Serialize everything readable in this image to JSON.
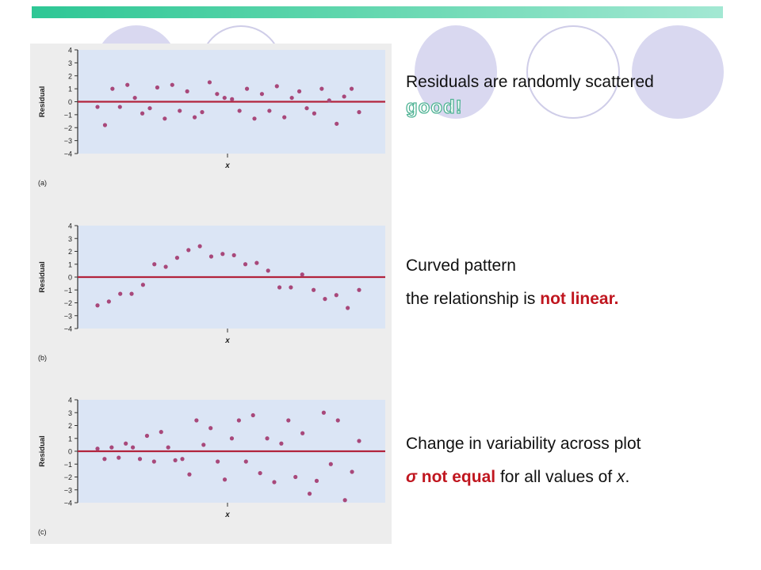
{
  "colors": {
    "plot_bg": "#dbe5f5",
    "zero_line": "#b2243c",
    "point": "#a8487a",
    "accent_red": "#c0161f",
    "good_outline": "#4fb394",
    "circle_fill": "#d9d8f0",
    "circle_outline": "#cfcde8"
  },
  "decor": {
    "arrow_glyph": ""
  },
  "chart_data": [
    {
      "type": "scatter",
      "panel_label": "(a)",
      "xlabel": "x",
      "ylabel": "Residual",
      "ylim": [
        -4,
        4
      ],
      "yticks": [
        "4",
        "3",
        "2",
        "1",
        "0",
        "−1",
        "−2",
        "−3",
        "−4"
      ],
      "zero_line": 0,
      "x": [
        1,
        2,
        3,
        4,
        5,
        6,
        7,
        8,
        9,
        10,
        11,
        12,
        13,
        14,
        15,
        16,
        17,
        18,
        19,
        20,
        21,
        22,
        23,
        24,
        25,
        26,
        27,
        28,
        29,
        30,
        31,
        32,
        33,
        34,
        35,
        36
      ],
      "y": [
        -0.4,
        -1.8,
        1.0,
        -0.4,
        1.3,
        0.3,
        -0.9,
        -0.5,
        1.1,
        -1.3,
        1.3,
        -0.7,
        0.8,
        -1.2,
        -0.8,
        1.5,
        0.6,
        0.3,
        0.2,
        -0.7,
        1.0,
        -1.3,
        0.6,
        -0.7,
        1.2,
        -1.2,
        0.3,
        0.8,
        -0.5,
        -0.9,
        1.0,
        0.1,
        -1.7,
        0.4,
        1.0,
        -0.8
      ]
    },
    {
      "type": "scatter",
      "panel_label": "(b)",
      "xlabel": "x",
      "ylabel": "Residual",
      "ylim": [
        -4,
        4
      ],
      "yticks": [
        "4",
        "3",
        "2",
        "1",
        "0",
        "−1",
        "−2",
        "−3",
        "−4"
      ],
      "zero_line": 0,
      "x": [
        1,
        2,
        3,
        4,
        5,
        6,
        7,
        8,
        9,
        10,
        11,
        12,
        13,
        14,
        15,
        16,
        17,
        18,
        19,
        20,
        21,
        22,
        23,
        24
      ],
      "y": [
        -2.2,
        -1.9,
        -1.3,
        -1.3,
        -0.6,
        1.0,
        0.8,
        1.5,
        2.1,
        2.4,
        1.6,
        1.8,
        1.7,
        1.0,
        1.1,
        0.5,
        -0.8,
        -0.8,
        0.2,
        -1.0,
        -1.7,
        -1.4,
        -2.4,
        -1.0
      ]
    },
    {
      "type": "scatter",
      "panel_label": "(c)",
      "xlabel": "x",
      "ylabel": "Residual",
      "ylim": [
        -4,
        4
      ],
      "yticks": [
        "4",
        "3",
        "2",
        "1",
        "0",
        "−1",
        "−2",
        "−3",
        "−4"
      ],
      "zero_line": 0,
      "x": [
        1,
        2,
        3,
        4,
        5,
        6,
        7,
        8,
        9,
        10,
        11,
        12,
        13,
        14,
        15,
        16,
        17,
        18,
        19,
        20,
        21,
        22,
        23,
        24,
        25,
        26,
        27,
        28,
        29,
        30,
        31,
        32,
        33,
        34,
        35,
        36,
        37,
        38
      ],
      "y": [
        0.2,
        -0.6,
        0.3,
        -0.5,
        0.6,
        0.3,
        -0.6,
        1.2,
        -0.8,
        1.5,
        0.3,
        -0.7,
        -0.6,
        -1.8,
        2.4,
        0.5,
        1.8,
        -0.8,
        -2.2,
        1.0,
        2.4,
        -0.8,
        2.8,
        -1.7,
        1.0,
        -2.4,
        0.6,
        2.4,
        -2.0,
        1.4,
        -3.3,
        -2.3,
        3.0,
        -1.0,
        2.4,
        -3.8,
        -1.6,
        0.8
      ]
    }
  ],
  "annotations": [
    {
      "line1": "Residuals are randomly scattered",
      "line2_highlight": "good!"
    },
    {
      "line1": "Curved pattern",
      "line2_prefix": "the relationship is ",
      "line2_highlight": "not linear."
    },
    {
      "line1": "Change in variability across plot",
      "line2_sigma": "σ",
      "line2_highlight": " not equal",
      "line2_suffix_a": " for all values of ",
      "line2_var": "x",
      "line2_suffix_b": "."
    }
  ]
}
